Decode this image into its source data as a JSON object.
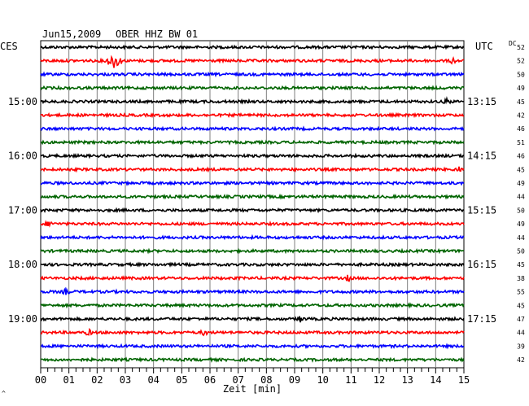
{
  "header": {
    "date": "Jun15,2009",
    "station": "OBER HHZ BW 01",
    "left_tz": "CES",
    "right_tz": "UTC",
    "dc_label": "DC"
  },
  "chart_data": {
    "type": "line",
    "title": "Jun15,2009  OBER HHZ BW 01",
    "xlabel": "Zeit [min]",
    "x_ticks": [
      "00",
      "01",
      "02",
      "03",
      "04",
      "05",
      "06",
      "07",
      "08",
      "09",
      "10",
      "11",
      "12",
      "13",
      "14",
      "15"
    ],
    "xlim": [
      0,
      15
    ],
    "trace_colors": [
      "#000000",
      "#ff0000",
      "#0000ff",
      "#006400"
    ],
    "local_time_labels": [
      {
        "row": 4,
        "text": "15:00"
      },
      {
        "row": 8,
        "text": "16:00"
      },
      {
        "row": 12,
        "text": "17:00"
      },
      {
        "row": 16,
        "text": "18:00"
      },
      {
        "row": 20,
        "text": "19:00"
      }
    ],
    "utc_time_labels": [
      {
        "row": 4,
        "text": "13:15"
      },
      {
        "row": 8,
        "text": "14:15"
      },
      {
        "row": 12,
        "text": "15:15"
      },
      {
        "row": 16,
        "text": "16:15"
      },
      {
        "row": 20,
        "text": "17:15"
      }
    ],
    "dc_offsets": [
      "52",
      "52",
      "50",
      "49",
      "45",
      "42",
      "46",
      "51",
      "46",
      "45",
      "49",
      "44",
      "50",
      "49",
      "44",
      "50",
      "45",
      "38",
      "55",
      "45",
      "47",
      "44",
      "39",
      "42"
    ],
    "events": [
      {
        "row": 1,
        "minute": 2.6,
        "amplitude": "large"
      },
      {
        "row": 1,
        "minute": 14.6,
        "amplitude": "small"
      },
      {
        "row": 4,
        "minute": 14.4,
        "amplitude": "small"
      },
      {
        "row": 9,
        "minute": 14.8,
        "amplitude": "small"
      },
      {
        "row": 13,
        "minute": 0.3,
        "amplitude": "small"
      },
      {
        "row": 17,
        "minute": 10.9,
        "amplitude": "small"
      },
      {
        "row": 18,
        "minute": 0.9,
        "amplitude": "small"
      },
      {
        "row": 20,
        "minute": 9.2,
        "amplitude": "small"
      },
      {
        "row": 21,
        "minute": 1.7,
        "amplitude": "small"
      },
      {
        "row": 21,
        "minute": 5.8,
        "amplitude": "small"
      }
    ],
    "grid": true
  },
  "footer": {
    "corner_mark": "^"
  }
}
